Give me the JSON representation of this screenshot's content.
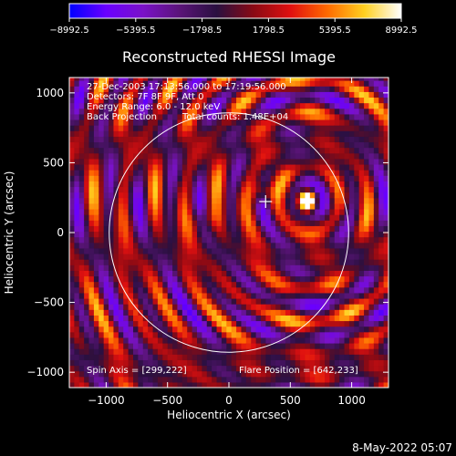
{
  "chart_data": {
    "type": "heatmap",
    "title": "Reconstructed RHESSI Image",
    "xlabel": "Heliocentric X (arcsec)",
    "ylabel": "Heliocentric Y (arcsec)",
    "xlim": [
      -1300,
      1300
    ],
    "ylim": [
      -1110,
      1110
    ],
    "xticks": [
      -1000,
      -500,
      0,
      500,
      1000
    ],
    "yticks": [
      -1000,
      -500,
      0,
      500,
      1000
    ],
    "xtick_labels": [
      "−1000",
      "−500",
      "0",
      "500",
      "1000"
    ],
    "ytick_labels": [
      "−1000",
      "−500",
      "0",
      "500",
      "1000"
    ],
    "colorbar": {
      "min": -8992.5,
      "max": 8992.5,
      "ticks": [
        -8992.5,
        -5395.5,
        -1798.5,
        1798.5,
        5395.5,
        8992.5
      ],
      "tick_labels": [
        "−8992.5",
        "−5395.5",
        "−1798.5",
        "1798.5",
        "5395.5",
        "8992.5"
      ],
      "colors": [
        "#0000ff",
        "#6a00ff",
        "#7a12c8",
        "#5a1478",
        "#2a1040",
        "#8a0a14",
        "#e01010",
        "#ff6a00",
        "#ffd020",
        "#ffffff"
      ]
    },
    "annotations": {
      "time_range": "27-Dec-2003 17:13:56.000 to 17:19:56.000",
      "detectors": "Detectors: 7F 8F 9F, Att 0",
      "energy_range": "Energy Range: 6.0 - 12.0 keV",
      "method": "Back Projection",
      "total_counts": "Total counts: 1.48E+04",
      "spin_axis": "Spin Axis = [299,222]",
      "flare_position": "Flare Position = [642,233]"
    },
    "solar_limb": {
      "center": [
        0,
        0
      ],
      "radius_arcsec": 975
    },
    "markers": [
      {
        "type": "cross",
        "x": 299,
        "y": 222
      }
    ],
    "sources": [
      {
        "x": 642,
        "y": 233,
        "amp": 9000,
        "sigma": 55
      },
      {
        "x": 260,
        "y": 300,
        "amp": 6500,
        "sigma": 60
      },
      {
        "x": -200,
        "y": 90,
        "amp": 3500,
        "sigma": 70
      }
    ],
    "sidelobe_pattern": {
      "radial_period_arcsec": 250,
      "grid_step_arcsec": 40
    }
  },
  "footer": {
    "timestamp": "8-May-2022 05:07"
  }
}
